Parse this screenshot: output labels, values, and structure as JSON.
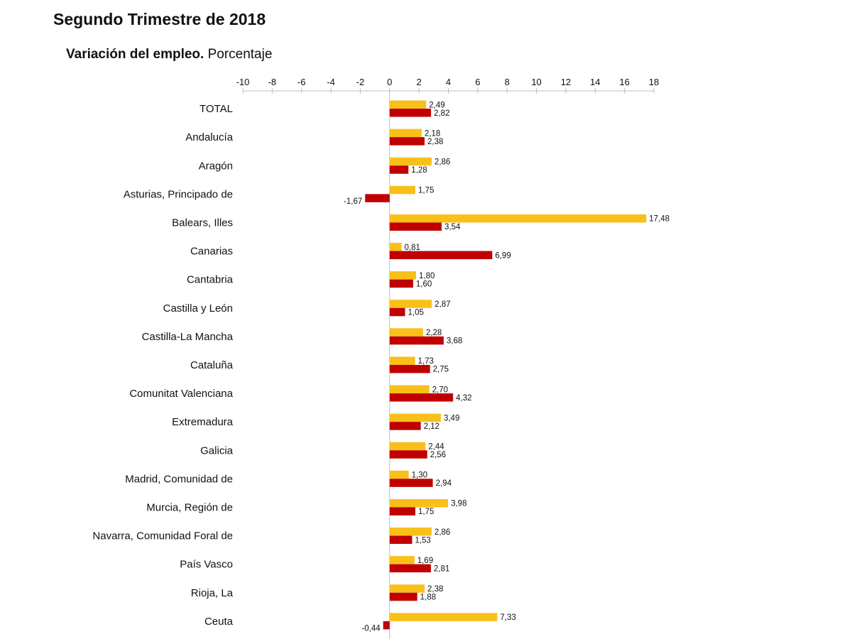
{
  "title": "Segundo Trimestre de 2018",
  "subtitle_bold": "Variación del empleo.",
  "subtitle_normal": "Porcentaje",
  "colors": {
    "series_1": "#F9C01A",
    "series_2": "#C00000",
    "axis": "#bfbfbf"
  },
  "chart_data": {
    "type": "bar",
    "orientation": "horizontal",
    "xlim": [
      -10,
      18
    ],
    "ticks": [
      -10,
      -8,
      -6,
      -4,
      -2,
      0,
      2,
      4,
      6,
      8,
      10,
      12,
      14,
      16,
      18
    ],
    "tick_labels": [
      "-10",
      "-8",
      "-6",
      "-4",
      "-2",
      "0",
      "2",
      "4",
      "6",
      "8",
      "10",
      "12",
      "14",
      "16",
      "18"
    ],
    "axis_position": "top",
    "legend": "none",
    "grid": false,
    "categories": [
      "TOTAL",
      "Andalucía",
      "Aragón",
      "Asturias, Principado de",
      "Balears, Illes",
      "Canarias",
      "Cantabria",
      "Castilla y León",
      "Castilla-La Mancha",
      "Cataluña",
      "Comunitat Valenciana",
      "Extremadura",
      "Galicia",
      "Madrid, Comunidad de",
      "Murcia, Región de",
      "Navarra, Comunidad Foral de",
      "País Vasco",
      "Rioja, La",
      "Ceuta"
    ],
    "series": [
      {
        "color": "#F9C01A",
        "values": [
          2.49,
          2.18,
          2.86,
          1.75,
          17.48,
          0.81,
          1.8,
          2.87,
          2.28,
          1.73,
          2.7,
          3.49,
          2.44,
          1.3,
          3.98,
          2.86,
          1.69,
          2.38,
          7.33
        ],
        "labels": [
          "2,49",
          "2,18",
          "2,86",
          "1,75",
          "17,48",
          "0,81",
          "1,80",
          "2,87",
          "2,28",
          "1,73",
          "2,70",
          "3,49",
          "2,44",
          "1,30",
          "3,98",
          "2,86",
          "1,69",
          "2,38",
          "7,33"
        ]
      },
      {
        "color": "#C00000",
        "values": [
          2.82,
          2.38,
          1.28,
          -1.67,
          3.54,
          6.99,
          1.6,
          1.05,
          3.68,
          2.75,
          4.32,
          2.12,
          2.56,
          2.94,
          1.75,
          1.53,
          2.81,
          1.88,
          -0.44
        ],
        "labels": [
          "2,82",
          "2,38",
          "1,28",
          "-1,67",
          "3,54",
          "6,99",
          "1,60",
          "1,05",
          "3,68",
          "2,75",
          "4,32",
          "2,12",
          "2,56",
          "2,94",
          "1,75",
          "1,53",
          "2,81",
          "1,88",
          "-0,44"
        ]
      }
    ]
  }
}
